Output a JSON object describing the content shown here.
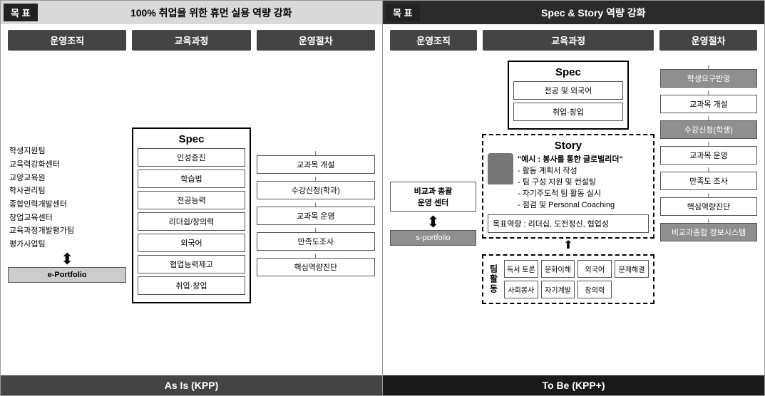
{
  "asis": {
    "goal_label": "목 표",
    "goal_text": "100% 취업을 위한 휴먼 실용 역량 강화",
    "columns": [
      "운영조직",
      "교육과정",
      "운영절차"
    ],
    "org_teams": [
      "학생지원팀",
      "교육력강화센터",
      "교양교육원",
      "학사관리팀",
      "종합인력개발센터",
      "창업교육센터",
      "교육과정개발평가팀",
      "평가사업팀"
    ],
    "org_portfolio": "e-Portfolio",
    "spec_title": "Spec",
    "spec_items": [
      "인성증진",
      "학습법",
      "전공능력",
      "리더쉽/창의력",
      "외국어",
      "협업능력제고",
      "취업·창업"
    ],
    "proc_items": [
      "교과목 개설",
      "수강신청(학과)",
      "교과목 운영",
      "만족도조사",
      "핵심역량진단"
    ],
    "footer": "As Is (KPP)"
  },
  "tobe": {
    "goal_label": "목 표",
    "goal_text": "Spec & Story 역량 강화",
    "columns": [
      "운영조직",
      "교육과정",
      "운영절차"
    ],
    "org_center_l1": "비교과 총괄",
    "org_center_l2": "운영 센터",
    "org_portfolio": "s-portfolio",
    "spec_title": "Spec",
    "spec_items": [
      "전공 및 외국어",
      "취업·창업"
    ],
    "story_title": "Story",
    "story_example_head": "\"예시 : 봉사를 통한 글로벌리더\"",
    "story_bullets": [
      "- 활동 계획서 작성",
      "- 팀 구성 지원 및 컨설팅",
      "- 자기주도적 팀 활동 실시",
      "- 점검 및 Personal Coaching"
    ],
    "target_text": "목표역량 :  리더십, 도전정신, 협업성",
    "teamact_label": "팀활동",
    "teamact_cells": [
      "독서 토론",
      "문화이해",
      "외국어",
      "문제해결",
      "사회봉사",
      "자기계발",
      "창의력",
      ""
    ],
    "proc_items": [
      {
        "t": "학생요구반영",
        "hi": true
      },
      {
        "t": "교과목 개설",
        "hi": false
      },
      {
        "t": "수강신청(학생)",
        "hi": true
      },
      {
        "t": "교과목 운영",
        "hi": false
      },
      {
        "t": "만족도 조사",
        "hi": false
      },
      {
        "t": "핵심역량진단",
        "hi": false
      },
      {
        "t": "비교과종합 정보시스템",
        "hi": true
      }
    ],
    "footer": "To Be (KPP+)"
  },
  "colors": {
    "header_light": "#d9d9d9",
    "header_dark": "#2b2b2b",
    "col_label_bg": "#444444",
    "box_border": "#555555",
    "highlight_bg": "#8f8f8f"
  }
}
